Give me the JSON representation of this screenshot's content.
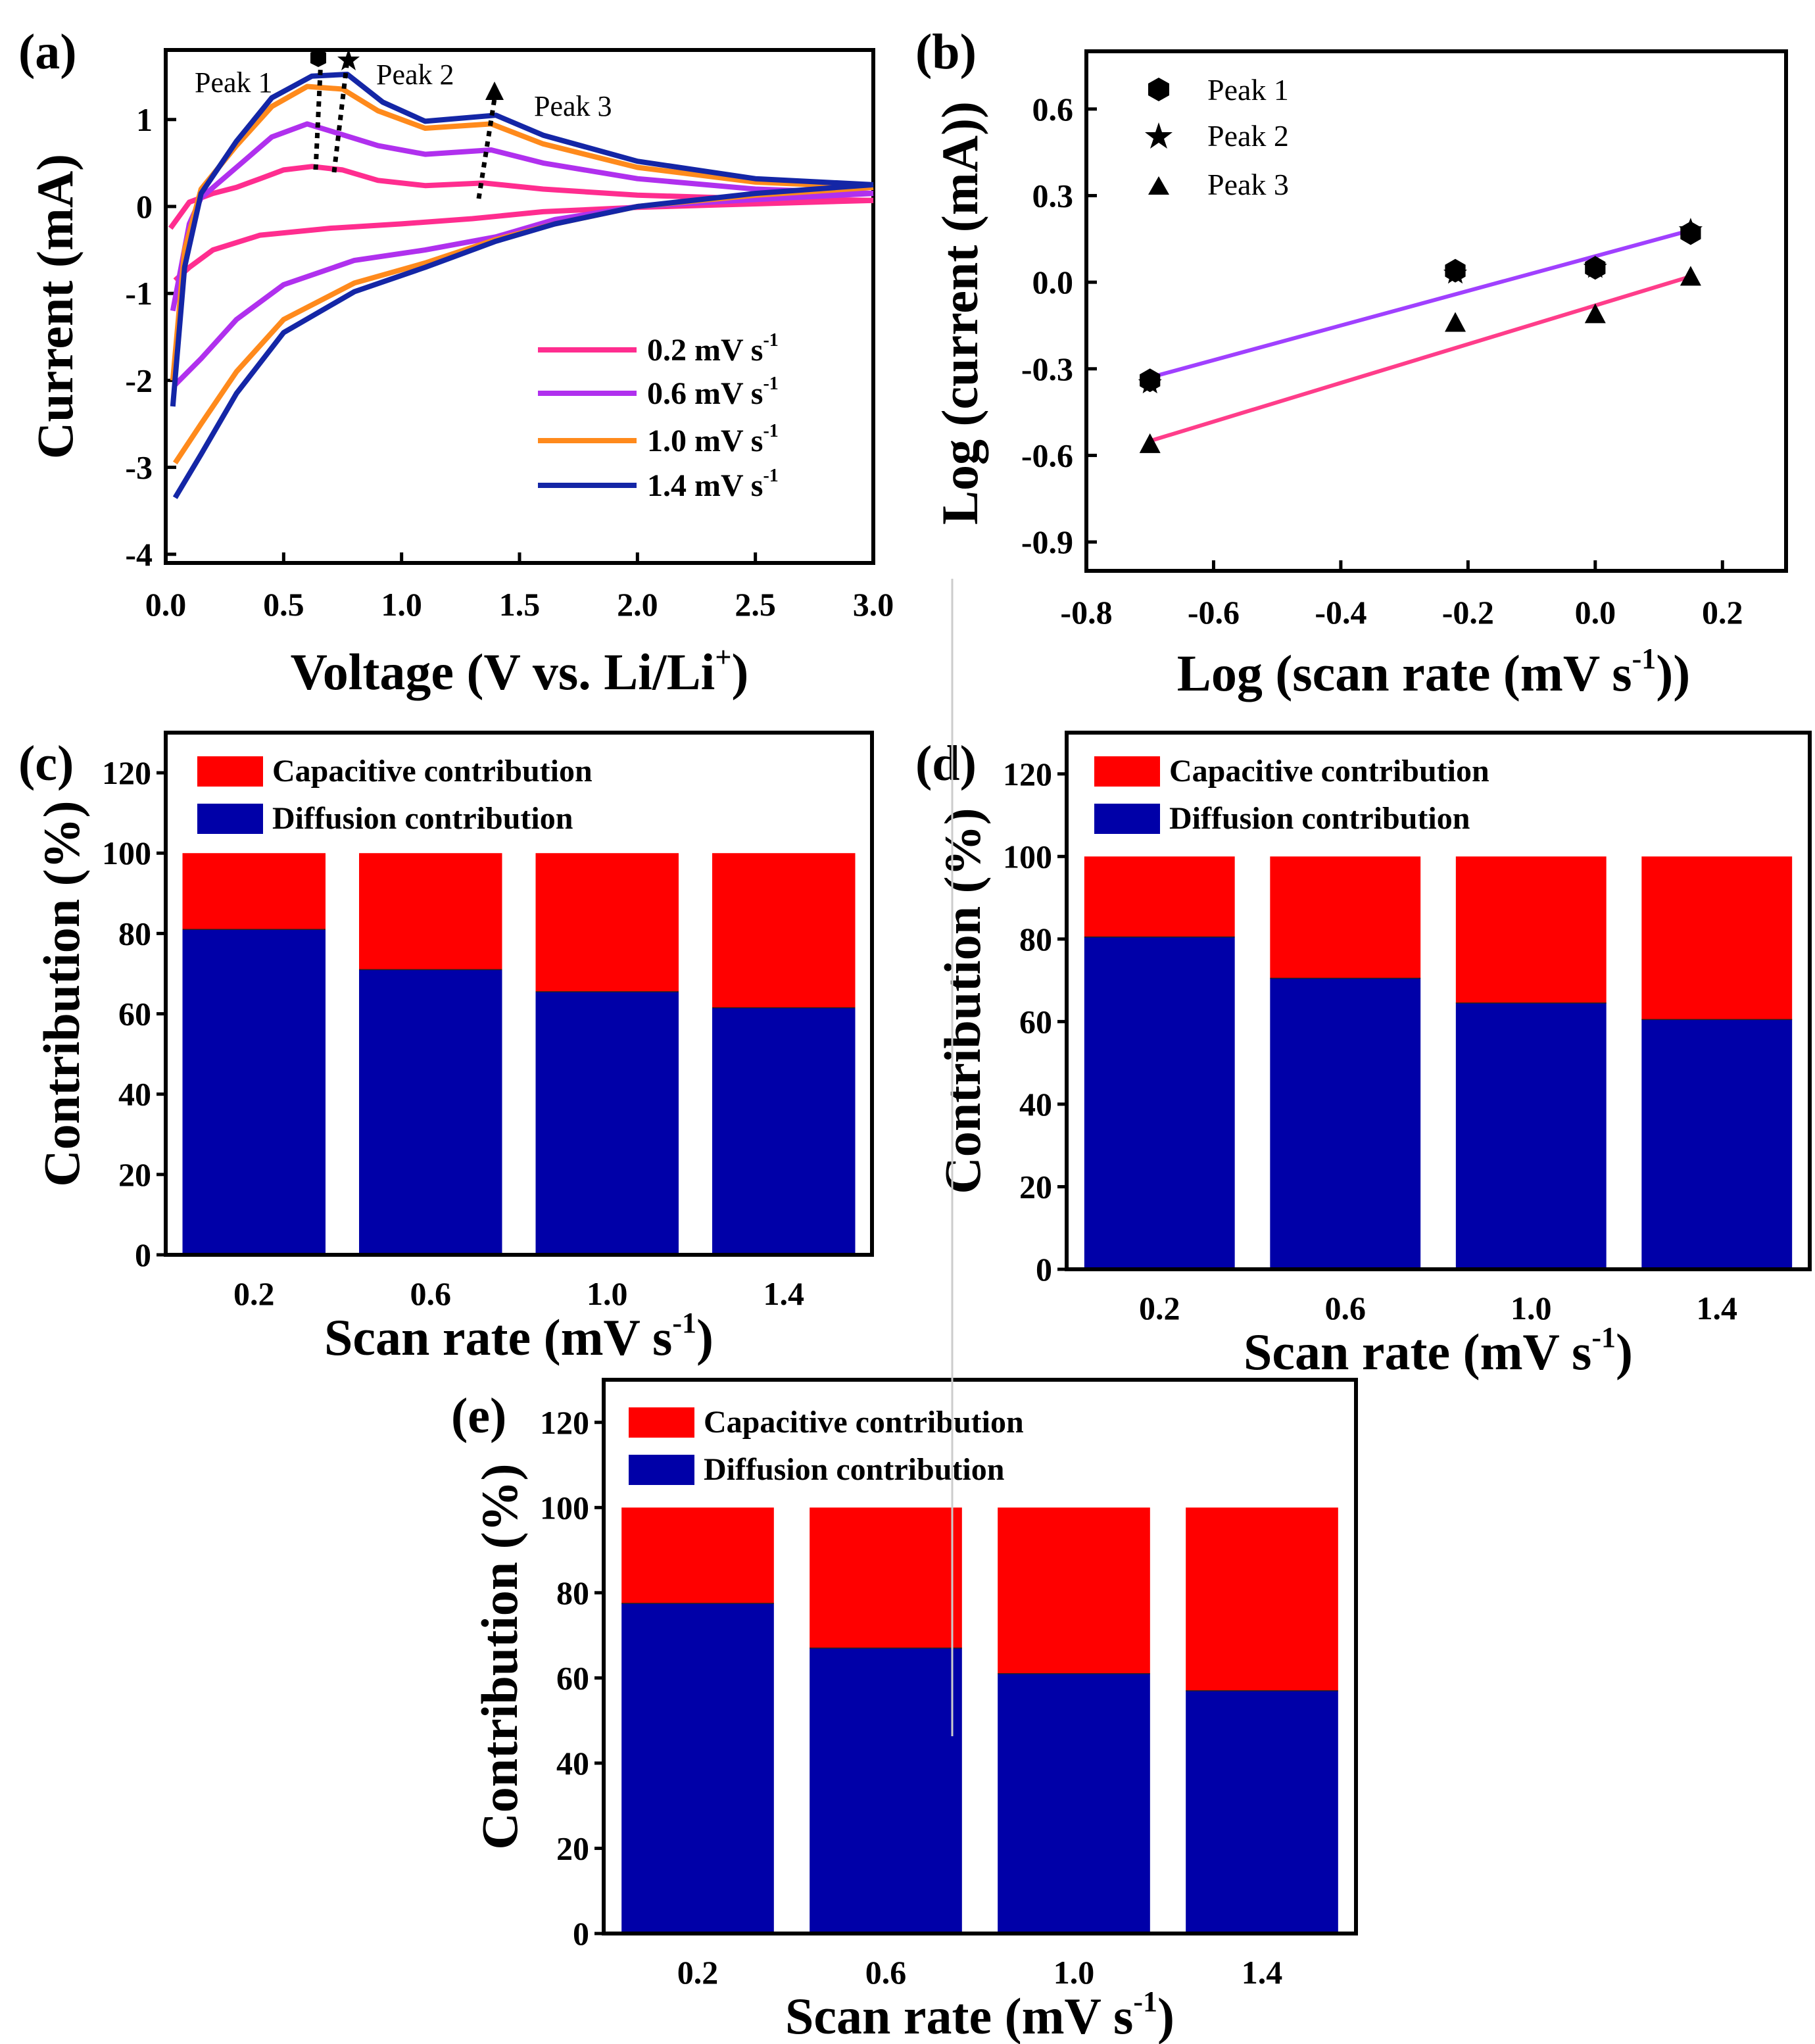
{
  "panels": {
    "a": {
      "label": "(a)",
      "xlabel": "Voltage (V vs. Li/Li",
      "xlabel_sup": "+",
      "xlabel_end": ")",
      "ylabel": "Current (mA)",
      "xticks": [
        "0.0",
        "0.5",
        "1.0",
        "1.5",
        "2.0",
        "2.5",
        "3.0"
      ],
      "yticks": [
        "1",
        "0",
        "-1",
        "-2",
        "-3",
        "-4"
      ],
      "peak_labels": [
        "Peak 1",
        "Peak 2",
        "Peak 3"
      ],
      "legend": [
        {
          "text": "0.2 mV s",
          "sup": "-1",
          "color": "#ff2d8f"
        },
        {
          "text": "0.6 mV s",
          "sup": "-1",
          "color": "#b030ee"
        },
        {
          "text": "1.0 mV s",
          "sup": "-1",
          "color": "#ff8a1c"
        },
        {
          "text": "1.4 mV s",
          "sup": "-1",
          "color": "#1426a6"
        }
      ]
    },
    "b": {
      "label": "(b)",
      "xlabel": "Log (scan rate (mV s",
      "xlabel_sup": "-1",
      "xlabel_end": "))",
      "ylabel": "Log (current (mA))",
      "xticks": [
        "-0.8",
        "-0.6",
        "-0.4",
        "-0.2",
        "0.0",
        "0.2"
      ],
      "yticks": [
        "0.6",
        "0.3",
        "0.0",
        "-0.3",
        "-0.6",
        "-0.9"
      ],
      "legend": [
        "Peak 1",
        "Peak 2",
        "Peak 3"
      ]
    },
    "bars": {
      "labels": [
        "(c)",
        "(d)",
        "(e)"
      ],
      "xlabel": "Scan rate (mV s",
      "xlabel_sup": "-1",
      "xlabel_end": ")",
      "ylabel": "Contribution (%)",
      "yticks": [
        "0",
        "20",
        "40",
        "60",
        "80",
        "100",
        "120"
      ],
      "legend_capacitive": "Capacitive contribution",
      "legend_diffusion": "Diffusion contribution"
    }
  },
  "colors": {
    "capacitive": "#ff0000",
    "diffusion": "#0000a8",
    "fit_upper": "#a040ff",
    "fit_lower": "#ff3d8a"
  },
  "chart_data": [
    {
      "id": "a",
      "type": "line",
      "title": "",
      "xlabel": "Voltage (V vs. Li/Li+)",
      "ylabel": "Current (mA)",
      "xlim": [
        0,
        3.0
      ],
      "ylim": [
        -4.1,
        1.8
      ],
      "series": [
        {
          "name": "0.2 mV s-1",
          "color": "#ff2d8f",
          "anodic": [
            [
              0.02,
              -0.25
            ],
            [
              0.1,
              0.05
            ],
            [
              0.2,
              0.15
            ],
            [
              0.3,
              0.22
            ],
            [
              0.4,
              0.32
            ],
            [
              0.5,
              0.42
            ],
            [
              0.62,
              0.46
            ],
            [
              0.75,
              0.42
            ],
            [
              0.9,
              0.3
            ],
            [
              1.1,
              0.24
            ],
            [
              1.35,
              0.27
            ],
            [
              1.6,
              0.2
            ],
            [
              2.0,
              0.13
            ],
            [
              2.5,
              0.09
            ],
            [
              3.0,
              0.07
            ]
          ],
          "cathodic": [
            [
              3.0,
              0.07
            ],
            [
              2.5,
              0.03
            ],
            [
              2.0,
              -0.01
            ],
            [
              1.6,
              -0.06
            ],
            [
              1.3,
              -0.14
            ],
            [
              1.0,
              -0.2
            ],
            [
              0.7,
              -0.25
            ],
            [
              0.4,
              -0.33
            ],
            [
              0.2,
              -0.5
            ],
            [
              0.1,
              -0.7
            ],
            [
              0.04,
              -0.85
            ]
          ]
        },
        {
          "name": "0.6 mV s-1",
          "color": "#b030ee",
          "anodic": [
            [
              0.03,
              -1.2
            ],
            [
              0.1,
              -0.2
            ],
            [
              0.15,
              0.1
            ],
            [
              0.3,
              0.45
            ],
            [
              0.45,
              0.8
            ],
            [
              0.6,
              0.95
            ],
            [
              0.72,
              0.85
            ],
            [
              0.9,
              0.7
            ],
            [
              1.1,
              0.6
            ],
            [
              1.38,
              0.65
            ],
            [
              1.6,
              0.5
            ],
            [
              2.0,
              0.32
            ],
            [
              2.5,
              0.2
            ],
            [
              3.0,
              0.15
            ]
          ],
          "cathodic": [
            [
              3.0,
              0.15
            ],
            [
              2.5,
              0.08
            ],
            [
              2.0,
              0.0
            ],
            [
              1.65,
              -0.15
            ],
            [
              1.4,
              -0.35
            ],
            [
              1.1,
              -0.5
            ],
            [
              0.8,
              -0.62
            ],
            [
              0.5,
              -0.9
            ],
            [
              0.3,
              -1.3
            ],
            [
              0.15,
              -1.75
            ],
            [
              0.04,
              -2.05
            ]
          ]
        },
        {
          "name": "1.0 mV s-1",
          "color": "#ff8a1c",
          "anodic": [
            [
              0.03,
              -2.0
            ],
            [
              0.08,
              -0.5
            ],
            [
              0.15,
              0.2
            ],
            [
              0.3,
              0.7
            ],
            [
              0.45,
              1.15
            ],
            [
              0.6,
              1.38
            ],
            [
              0.75,
              1.35
            ],
            [
              0.9,
              1.1
            ],
            [
              1.1,
              0.9
            ],
            [
              1.38,
              0.95
            ],
            [
              1.6,
              0.72
            ],
            [
              2.0,
              0.45
            ],
            [
              2.5,
              0.28
            ],
            [
              3.0,
              0.22
            ]
          ],
          "cathodic": [
            [
              3.0,
              0.22
            ],
            [
              2.5,
              0.13
            ],
            [
              2.0,
              0.0
            ],
            [
              1.65,
              -0.2
            ],
            [
              1.4,
              -0.38
            ],
            [
              1.1,
              -0.65
            ],
            [
              0.8,
              -0.88
            ],
            [
              0.5,
              -1.3
            ],
            [
              0.3,
              -1.9
            ],
            [
              0.15,
              -2.5
            ],
            [
              0.04,
              -2.95
            ]
          ]
        },
        {
          "name": "1.4 mV s-1",
          "color": "#1426a6",
          "anodic": [
            [
              0.03,
              -2.3
            ],
            [
              0.08,
              -0.7
            ],
            [
              0.15,
              0.15
            ],
            [
              0.3,
              0.75
            ],
            [
              0.45,
              1.25
            ],
            [
              0.62,
              1.5
            ],
            [
              0.77,
              1.52
            ],
            [
              0.92,
              1.2
            ],
            [
              1.1,
              0.98
            ],
            [
              1.4,
              1.05
            ],
            [
              1.6,
              0.82
            ],
            [
              2.0,
              0.52
            ],
            [
              2.5,
              0.32
            ],
            [
              3.0,
              0.25
            ]
          ],
          "cathodic": [
            [
              3.0,
              0.25
            ],
            [
              2.5,
              0.15
            ],
            [
              2.0,
              0.0
            ],
            [
              1.65,
              -0.2
            ],
            [
              1.4,
              -0.4
            ],
            [
              1.1,
              -0.7
            ],
            [
              0.8,
              -0.98
            ],
            [
              0.5,
              -1.45
            ],
            [
              0.3,
              -2.15
            ],
            [
              0.15,
              -2.85
            ],
            [
              0.04,
              -3.35
            ]
          ]
        }
      ]
    },
    {
      "id": "b",
      "type": "scatter",
      "xlabel": "Log (scan rate (mV s-1))",
      "ylabel": "Log (current (mA))",
      "xlim": [
        -0.8,
        0.3
      ],
      "ylim": [
        -1.0,
        0.8
      ],
      "x": [
        -0.7,
        -0.22,
        0.0,
        0.15
      ],
      "series": [
        {
          "name": "Peak 1",
          "marker": "hexagon",
          "values": [
            -0.34,
            0.04,
            0.05,
            0.17
          ]
        },
        {
          "name": "Peak 2",
          "marker": "star",
          "values": [
            -0.35,
            0.03,
            0.05,
            0.18
          ]
        },
        {
          "name": "Peak 3",
          "marker": "triangle",
          "values": [
            -0.56,
            -0.14,
            -0.11,
            0.02
          ]
        }
      ],
      "fits": [
        {
          "color": "#a040ff",
          "x": [
            -0.7,
            0.15
          ],
          "y": [
            -0.33,
            0.18
          ]
        },
        {
          "color": "#ff3d8a",
          "x": [
            -0.7,
            0.15
          ],
          "y": [
            -0.55,
            0.02
          ]
        }
      ]
    },
    {
      "id": "c",
      "type": "bar",
      "stacked": true,
      "xlabel": "Scan rate (mV s-1)",
      "ylabel": "Contribution (%)",
      "categories": [
        "0.2",
        "0.6",
        "1.0",
        "1.4"
      ],
      "ylim": [
        0,
        130
      ],
      "series": [
        {
          "name": "Diffusion contribution",
          "values": [
            81,
            71,
            65.5,
            61.5
          ]
        },
        {
          "name": "Capacitive contribution",
          "values": [
            19,
            29,
            34.5,
            38.5
          ]
        }
      ]
    },
    {
      "id": "d",
      "type": "bar",
      "stacked": true,
      "xlabel": "Scan rate (mV s-1)",
      "ylabel": "Contribution (%)",
      "categories": [
        "0.2",
        "0.6",
        "1.0",
        "1.4"
      ],
      "ylim": [
        0,
        130
      ],
      "series": [
        {
          "name": "Diffusion contribution",
          "values": [
            80.5,
            70.5,
            64.5,
            60.5
          ]
        },
        {
          "name": "Capacitive contribution",
          "values": [
            19.5,
            29.5,
            35.5,
            39.5
          ]
        }
      ]
    },
    {
      "id": "e",
      "type": "bar",
      "stacked": true,
      "xlabel": "Scan rate (mV s-1)",
      "ylabel": "Contribution (%)",
      "categories": [
        "0.2",
        "0.6",
        "1.0",
        "1.4"
      ],
      "ylim": [
        0,
        130
      ],
      "series": [
        {
          "name": "Diffusion contribution",
          "values": [
            77.5,
            67,
            61,
            57
          ]
        },
        {
          "name": "Capacitive contribution",
          "values": [
            22.5,
            33,
            39,
            43
          ]
        }
      ]
    }
  ]
}
